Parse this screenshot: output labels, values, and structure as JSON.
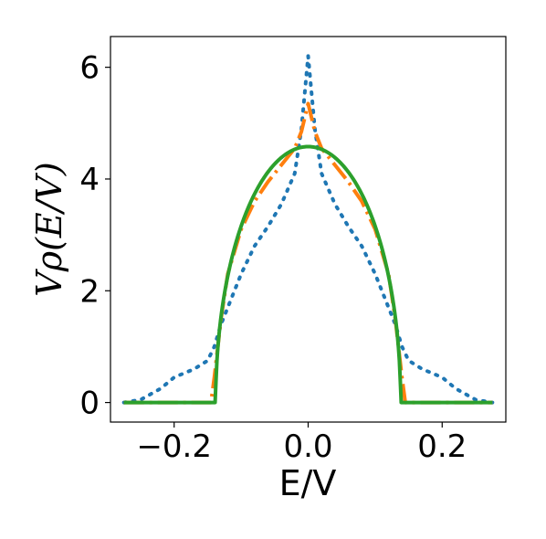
{
  "chart_data": {
    "type": "line",
    "title": "",
    "xlabel": "E/V",
    "ylabel": "Vρ(E/V)",
    "xlim": [
      -0.295,
      0.295
    ],
    "ylim": [
      -0.35,
      6.55
    ],
    "xticks": [
      -0.2,
      0.0,
      0.2
    ],
    "xtick_labels": [
      "−0.2",
      "0.0",
      "0.2"
    ],
    "yticks": [
      0,
      2,
      4,
      6
    ],
    "ytick_labels": [
      "0",
      "2",
      "4",
      "6"
    ],
    "grid": false,
    "legend": "none",
    "series": [
      {
        "style": "dotted",
        "color": "#1f77b4",
        "x": [
          -0.275,
          -0.25,
          -0.22,
          -0.2,
          -0.17,
          -0.15,
          -0.14,
          -0.13,
          -0.1,
          -0.08,
          -0.06,
          -0.04,
          -0.02,
          -0.01,
          0.0,
          0.01,
          0.02,
          0.04,
          0.06,
          0.08,
          0.1,
          0.13,
          0.14,
          0.15,
          0.17,
          0.2,
          0.22,
          0.25,
          0.275
        ],
        "y": [
          0.0,
          0.05,
          0.25,
          0.45,
          0.6,
          0.75,
          1.0,
          1.4,
          2.3,
          2.8,
          3.15,
          3.55,
          4.1,
          4.9,
          6.2,
          4.9,
          4.1,
          3.55,
          3.15,
          2.8,
          2.3,
          1.4,
          1.0,
          0.75,
          0.6,
          0.45,
          0.25,
          0.05,
          0.0
        ]
      },
      {
        "style": "dashdot",
        "color": "#ff7f0e",
        "x": [
          -0.275,
          -0.145,
          -0.14,
          -0.13,
          -0.12,
          -0.1,
          -0.08,
          -0.06,
          -0.04,
          -0.02,
          -0.01,
          0.0,
          0.01,
          0.02,
          0.04,
          0.06,
          0.08,
          0.1,
          0.12,
          0.13,
          0.14,
          0.145,
          0.275
        ],
        "y": [
          0.0,
          0.0,
          0.45,
          1.5,
          2.3,
          3.1,
          3.6,
          3.95,
          4.25,
          4.55,
          4.85,
          5.35,
          4.85,
          4.55,
          4.25,
          3.95,
          3.6,
          3.1,
          2.3,
          1.5,
          0.45,
          0.0,
          0.0
        ]
      },
      {
        "style": "solid",
        "color": "#2ca02c",
        "radius": 0.138,
        "peak": 4.58,
        "xrange": [
          -0.275,
          0.275
        ]
      }
    ]
  }
}
